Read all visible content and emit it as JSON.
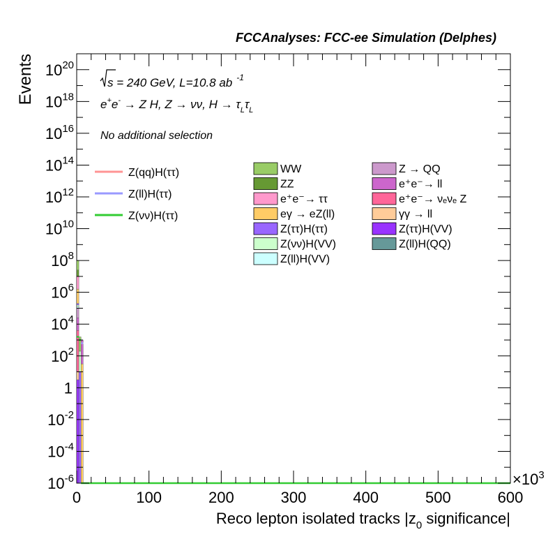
{
  "header": {
    "title": "FCCAnalyses: FCC-ee Simulation (Delphes)"
  },
  "annotations": {
    "energy_prefix": "s",
    "energy_rest": " = 240 GeV, L=10.8 ab",
    "lumi_exp": "-1",
    "process_a": "e",
    "process_b": " → Z H, Z → νν, H → τ",
    "process_c": "τ",
    "sub_L": "L",
    "selection": "No additional selection"
  },
  "axes": {
    "ylabel": "Events",
    "xlabel_a": "Reco lepton isolated tracks |z",
    "xlabel_sub": "0",
    "xlabel_b": " significance|",
    "x_multiplier": "×10",
    "x_multiplier_exp": "3",
    "x_ticks": [
      "0",
      "100",
      "200",
      "300",
      "400",
      "500",
      "600"
    ],
    "y_ticks": [
      {
        "m": "10",
        "e": "20"
      },
      {
        "m": "10",
        "e": "18"
      },
      {
        "m": "10",
        "e": "16"
      },
      {
        "m": "10",
        "e": "14"
      },
      {
        "m": "10",
        "e": "12"
      },
      {
        "m": "10",
        "e": "10"
      },
      {
        "m": "10",
        "e": "8"
      },
      {
        "m": "10",
        "e": "6"
      },
      {
        "m": "10",
        "e": "4"
      },
      {
        "m": "10",
        "e": "2"
      },
      {
        "m": "1",
        "e": ""
      },
      {
        "m": "10",
        "e": "-2"
      },
      {
        "m": "10",
        "e": "-4"
      },
      {
        "m": "10",
        "e": "-6"
      }
    ]
  },
  "legend": {
    "signals": [
      {
        "label": "Z(qq)H(ττ)",
        "color": "#ff9494"
      },
      {
        "label": "Z(ll)H(ττ)",
        "color": "#9999ff"
      },
      {
        "label": "Z(νν)H(ττ)",
        "color": "#33cc33"
      }
    ],
    "backgrounds_col1": [
      {
        "label": "WW",
        "color": "#99cc66"
      },
      {
        "label": "ZZ",
        "color": "#669933"
      },
      {
        "label": "e⁺e⁻→ ττ",
        "color": "#ff99cc"
      },
      {
        "label": "eγ → eZ(ll)",
        "color": "#ffcc66"
      },
      {
        "label": "Z(ττ)H(ττ)",
        "color": "#9966ff"
      },
      {
        "label": "Z(νν)H(VV)",
        "color": "#ccffcc"
      },
      {
        "label": "Z(ll)H(VV)",
        "color": "#ccffff"
      }
    ],
    "backgrounds_col2": [
      {
        "label": "Z → QQ",
        "color": "#cc99cc"
      },
      {
        "label": "e⁺e⁻→ ll",
        "color": "#cc66cc"
      },
      {
        "label": "e⁺e⁻→ νₑνₑ Z",
        "color": "#ff6699"
      },
      {
        "label": "γγ → ll",
        "color": "#ffcc99"
      },
      {
        "label": "Z(ττ)H(VV)",
        "color": "#9933ff"
      },
      {
        "label": "Z(ll)H(QQ)",
        "color": "#669999"
      }
    ]
  },
  "chart_data": {
    "type": "bar",
    "title": "FCCAnalyses: FCC-ee Simulation (Delphes)",
    "xlabel": "Reco lepton isolated tracks |z0 significance|",
    "ylabel": "Events",
    "x_units_multiplier": 1000,
    "xlim": [
      0,
      600
    ],
    "ylim_log10": [
      -6,
      21
    ],
    "y_scale": "log",
    "grid": false,
    "legend_position": "upper-center",
    "stacked_background_bins": [
      {
        "x": [
          0,
          3
        ],
        "layers": [
          {
            "name": "Z(ll)H(QQ)",
            "log10_top": -6.0
          },
          {
            "name": "Z(ττ)H(VV)",
            "log10_top": 0.5
          },
          {
            "name": "γγ → ll",
            "log10_top": 1.0
          },
          {
            "name": "e⁺e⁻→ νₑνₑ Z",
            "log10_top": 3.6
          },
          {
            "name": "e⁺e⁻→ ll",
            "log10_top": 4.4
          },
          {
            "name": "Z → QQ",
            "log10_top": 5.0
          },
          {
            "name": "Z(ll)H(VV)",
            "log10_top": 5.1
          },
          {
            "name": "Z(νν)H(VV)",
            "log10_top": 5.2
          },
          {
            "name": "Z(ττ)H(ττ)",
            "log10_top": 5.3
          },
          {
            "name": "eγ → eZ(ll)",
            "log10_top": 6.2
          },
          {
            "name": "e⁺e⁻→ ττ",
            "log10_top": 7.0
          },
          {
            "name": "ZZ",
            "log10_top": 7.4
          },
          {
            "name": "WW",
            "log10_top": 8.0
          }
        ]
      },
      {
        "x": [
          3,
          6
        ],
        "layers": [
          {
            "name": "Z(ττ)H(ττ)",
            "log10_top": 1.0
          },
          {
            "name": "Z(νν)H(VV)",
            "log10_top": 2.3
          },
          {
            "name": "WW",
            "log10_top": 3.2
          }
        ]
      },
      {
        "x": [
          6,
          9
        ],
        "layers": [
          {
            "name": "eγ → eZ(ll)",
            "log10_top": 1.5
          },
          {
            "name": "e⁺e⁻→ ll",
            "log10_top": 3.0
          }
        ]
      }
    ],
    "signal_series": [
      {
        "name": "Z(qq)H(ττ)",
        "bins": [
          {
            "x": [
              6,
              9
            ],
            "log10": 2.8
          }
        ]
      },
      {
        "name": "Z(ll)H(ττ)",
        "bins": [
          {
            "x": [
              6,
              9
            ],
            "log10": 2.8
          }
        ]
      },
      {
        "name": "Z(νν)H(ττ)",
        "bins": [
          {
            "x": [
              0,
              3
            ],
            "log10": 3.2
          },
          {
            "x": [
              3,
              6
            ],
            "log10": 3.0
          },
          {
            "x": [
              6,
              600
            ],
            "log10": -6.0
          }
        ]
      }
    ]
  }
}
